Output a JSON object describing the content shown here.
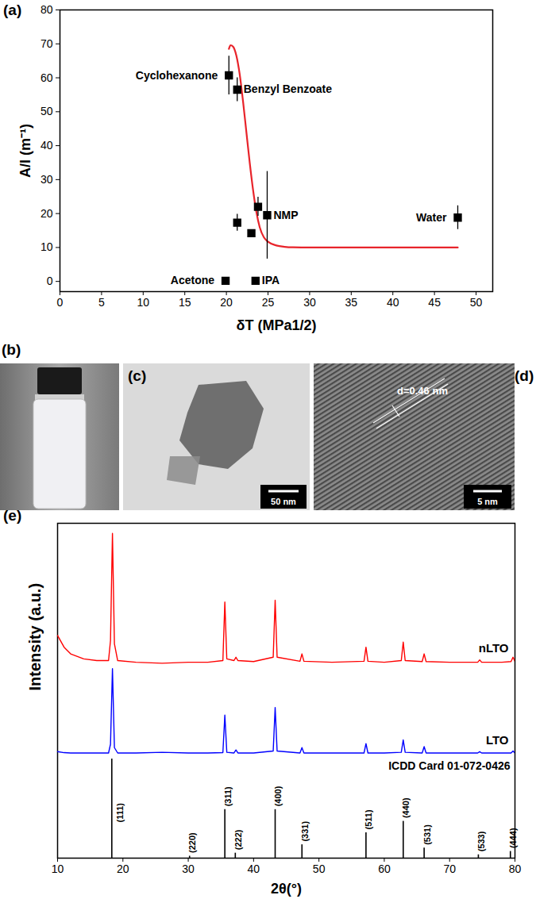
{
  "chart_data": [
    {
      "panel": "(a)",
      "type": "scatter",
      "x_label": "δT (MPa1/2)",
      "y_label": "A/l (m⁻¹)",
      "xlim": [
        0,
        52
      ],
      "ylim": [
        -3,
        80
      ],
      "xticks": [
        0,
        5,
        10,
        15,
        20,
        25,
        30,
        35,
        40,
        45,
        50
      ],
      "yticks": [
        0,
        10,
        20,
        30,
        40,
        50,
        60,
        70,
        80
      ],
      "marker": "square",
      "color": "#000000",
      "points": {
        "labels": [
          "Cyclohexanone",
          "Benzyl Benzoate",
          null,
          null,
          null,
          "NMP",
          "Water",
          "Acetone",
          "IPA"
        ],
        "x": [
          20.3,
          21.3,
          21.3,
          23.0,
          23.8,
          24.9,
          47.8,
          19.9,
          23.5
        ],
        "values": [
          60.7,
          56.5,
          17.3,
          14.2,
          22.0,
          19.5,
          18.8,
          0.2,
          0.2
        ],
        "errors": [
          5.7,
          3.5,
          2.5,
          0.8,
          2.8,
          12.9,
          3.5,
          0,
          0
        ]
      },
      "fit": {
        "type": "line",
        "color": "#e8242b",
        "x": [
          20.3,
          20.5,
          20.8,
          21.2,
          21.6,
          22.0,
          22.4,
          22.8,
          23.2,
          23.6,
          24.0,
          24.5,
          25.0,
          26.0,
          27.0,
          28.0,
          30.0,
          35.0,
          40.0,
          47.8
        ],
        "values": [
          68.5,
          69.6,
          69.2,
          66.5,
          61,
          53,
          44,
          35,
          27,
          20.5,
          16,
          13,
          11.7,
          10.6,
          10.2,
          10.05,
          10,
          10,
          10,
          10
        ]
      }
    },
    {
      "panel": "(e)",
      "type": "line",
      "x_label": "2θ(°)",
      "y_label": "Intensity (a.u.)",
      "tick_labels": "x",
      "xlim": [
        10,
        80
      ],
      "ylim": [
        0,
        100
      ],
      "xticks": [
        10,
        20,
        30,
        40,
        50,
        60,
        70,
        80
      ],
      "x": [
        10,
        11,
        12,
        14,
        16,
        17.8,
        18.1,
        18.4,
        18.7,
        19.2,
        22,
        26,
        30,
        33,
        35.3,
        35.6,
        35.9,
        37,
        37.3,
        37.6,
        40,
        43,
        43.3,
        43.6,
        47.1,
        47.4,
        47.7,
        52,
        56.9,
        57.2,
        57.5,
        60,
        62.6,
        62.9,
        63.2,
        65.8,
        66.1,
        66.4,
        70,
        74.3,
        74.6,
        74.9,
        78,
        79.4,
        79.7,
        80
      ],
      "series": [
        {
          "name": "nLTO",
          "color": "#ff0000",
          "values": [
            66.5,
            63,
            61,
            59.5,
            59,
            59,
            65,
            97,
            64,
            59,
            58.5,
            58.2,
            58.5,
            58.5,
            59,
            76.5,
            59.5,
            59,
            60,
            59,
            58.7,
            60,
            77,
            60,
            58.8,
            61,
            58.8,
            58.5,
            58.8,
            63,
            58.8,
            58.5,
            59,
            64.5,
            59,
            58.7,
            61,
            58.7,
            58.5,
            58.5,
            59.2,
            58.5,
            58.5,
            58.7,
            60,
            58.8
          ]
        },
        {
          "name": "LTO",
          "color": "#0000ff",
          "values": [
            31.8,
            31.5,
            31.4,
            31.4,
            31.4,
            31.4,
            34,
            56.6,
            33,
            31.4,
            31.4,
            31.6,
            31.4,
            31.4,
            31.5,
            42.7,
            31.6,
            31.4,
            32.3,
            31.4,
            31.4,
            32,
            45,
            32,
            31.4,
            33,
            31.4,
            31.4,
            31.4,
            34.2,
            31.4,
            31.4,
            31.6,
            35.3,
            31.6,
            31.4,
            33.3,
            31.4,
            31.4,
            31.4,
            31.8,
            31.4,
            31.4,
            31.4,
            32,
            31.4
          ]
        }
      ],
      "reference": {
        "name": "ICDD Card 01-072-0426",
        "color": "#000000",
        "x": [
          18.3,
          30.2,
          35.6,
          37.2,
          43.3,
          47.4,
          57.2,
          62.9,
          66.1,
          74.4,
          79.3
        ],
        "values": [
          29.6,
          0.6,
          14.5,
          1.5,
          14.5,
          4,
          7.6,
          11,
          3,
          1,
          2
        ],
        "labels": [
          "(111)",
          "(220)",
          "(311)",
          "(222)",
          "(400)",
          "(331)",
          "(511)",
          "(440)",
          "(531)",
          "(533)",
          "(444)"
        ]
      }
    }
  ],
  "images": [
    {
      "panel": "(b)"
    },
    {
      "panel": "(c)",
      "scale_bar": "50 nm"
    },
    {
      "panel": "(d)",
      "scale_bar": "5 nm",
      "annotation": "d=0.46 nm"
    }
  ]
}
